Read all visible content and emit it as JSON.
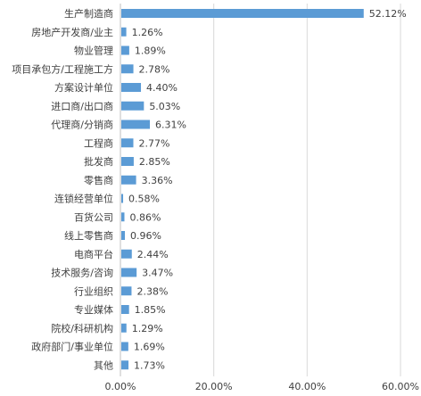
{
  "chart_data": {
    "type": "bar",
    "orientation": "horizontal",
    "title": "",
    "xlabel": "",
    "ylabel": "",
    "xlim": [
      0,
      60
    ],
    "x_ticks": [
      0,
      20,
      40,
      60
    ],
    "x_tick_labels": [
      "0.00%",
      "20.00%",
      "40.00%",
      "60.00%"
    ],
    "grid": "vertical",
    "bar_color": "#5b9bd5",
    "grid_color": "#d9d9d9",
    "categories": [
      "生产制造商",
      "房地产开发商/业主",
      "物业管理",
      "项目承包方/工程施工方",
      "方案设计单位",
      "进口商/出口商",
      "代理商/分销商",
      "工程商",
      "批发商",
      "零售商",
      "连锁经营单位",
      "百货公司",
      "线上零售商",
      "电商平台",
      "技术服务/咨询",
      "行业组织",
      "专业媒体",
      "院校/科研机构",
      "政府部门/事业单位",
      "其他"
    ],
    "values": [
      52.12,
      1.26,
      1.89,
      2.78,
      4.4,
      5.03,
      6.31,
      2.77,
      2.85,
      3.36,
      0.58,
      0.86,
      0.96,
      2.44,
      3.47,
      2.38,
      1.85,
      1.29,
      1.69,
      1.73
    ],
    "value_labels": [
      "52.12%",
      "1.26%",
      "1.89%",
      "2.78%",
      "4.40%",
      "5.03%",
      "6.31%",
      "2.77%",
      "2.85%",
      "3.36%",
      "0.58%",
      "0.86%",
      "0.96%",
      "2.44%",
      "3.47%",
      "2.38%",
      "1.85%",
      "1.29%",
      "1.69%",
      "1.73%"
    ]
  }
}
